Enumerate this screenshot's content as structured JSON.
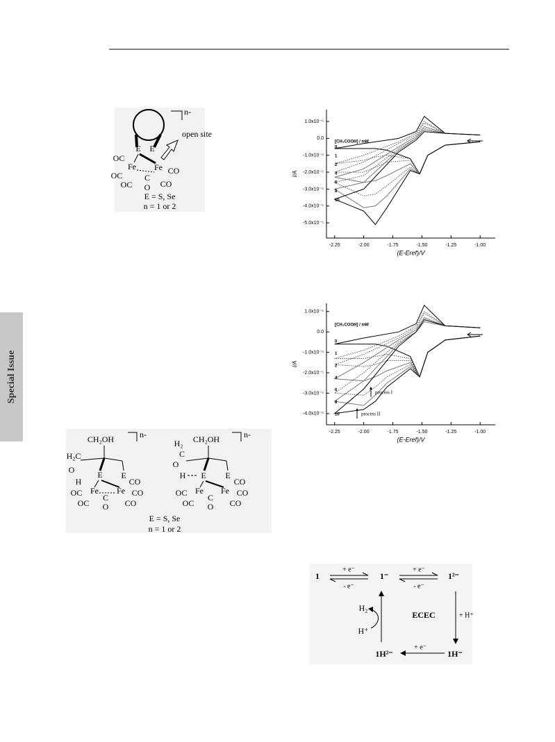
{
  "side_tab": "Special Issue",
  "figure1": {
    "charge": "n-",
    "open_site": "open site",
    "atoms": [
      "E",
      "E",
      "OC",
      "Fe",
      "Fe",
      "OC",
      "OC",
      "C",
      "O",
      "CO",
      "CO"
    ],
    "caption": [
      "E = S, Se",
      "n = 1 or 2"
    ]
  },
  "chart_data": [
    {
      "type": "line",
      "y_label": "I/A",
      "x_label": "(E-Eref)/V",
      "legend_title": "[CH₃COOH] / mM",
      "x": [
        -1.0,
        -1.3,
        -1.45,
        -1.52,
        -1.6,
        -1.8,
        -1.9,
        -2.0,
        -2.25,
        -2.0,
        -1.7,
        -1.55,
        -1.48,
        -1.3,
        -1.0
      ],
      "xlim": [
        -2.32,
        -0.87
      ],
      "ylim": [
        -5.9e-05,
        1.7e-05
      ],
      "xticks": [
        -2.25,
        {
          "value": -2,
          "label": "-2.00"
        },
        -1.75,
        {
          "value": -1.5,
          "label": "-1.50"
        },
        -1.25,
        {
          "value": -1,
          "label": "-1.00"
        }
      ],
      "yticks": [
        {
          "value": 1e-05,
          "label": "1.0x10⁻⁵"
        },
        {
          "value": 0,
          "label": "0.0"
        },
        {
          "value": -1e-05,
          "label": "-1.0x10⁻⁵"
        },
        {
          "value": -2e-05,
          "label": "-2.0x10⁻⁵"
        },
        {
          "value": -3e-05,
          "label": "-3.0x10⁻⁵"
        },
        {
          "value": -4e-05,
          "label": "-4.0x10⁻⁵"
        },
        {
          "value": -5e-05,
          "label": "-5.0x10⁻⁵"
        }
      ],
      "series": [
        {
          "name": "0",
          "color": "#000000",
          "style": "solid",
          "values": [
            -2e-06,
            -4e-06,
            -1e-05,
            -2.1e-05,
            -1.2e-05,
            -7e-06,
            -6e-06,
            -6e-06,
            -6e-06,
            -3e-06,
            0,
            4e-06,
            1.3e-05,
            3e-06,
            2e-06
          ]
        },
        {
          "name": "1",
          "color": "#444444",
          "style": "dotted",
          "values": [
            -2e-06,
            -4e-06,
            -1e-05,
            -2.1e-05,
            -1.2e-05,
            -1e-05,
            -1.1e-05,
            -1.3e-05,
            -1.5e-05,
            -1e-05,
            -2e-06,
            3e-06,
            1e-05,
            3e-06,
            2e-06
          ]
        },
        {
          "name": "2",
          "color": "#444444",
          "style": "dotted",
          "values": [
            -2e-06,
            -4e-06,
            -1e-05,
            -2.1e-05,
            -1.3e-05,
            -1.4e-05,
            -1.7e-05,
            -2e-05,
            -2e-05,
            -1.4e-05,
            -3e-06,
            2e-06,
            9e-06,
            3e-06,
            2e-06
          ]
        },
        {
          "name": "4",
          "color": "#777777",
          "style": "solid",
          "values": [
            -2e-06,
            -4e-06,
            -1e-05,
            -2.1e-05,
            -1.5e-05,
            -2.2e-05,
            -2.5e-05,
            -2.6e-05,
            -2.3e-05,
            -1.8e-05,
            -5e-06,
            1e-06,
            7e-06,
            3e-06,
            2e-06
          ]
        },
        {
          "name": "6",
          "color": "#444444",
          "style": "dotted",
          "values": [
            -2e-06,
            -4e-06,
            -1e-05,
            -2.1e-05,
            -1.7e-05,
            -2.8e-05,
            -3.3e-05,
            -3.4e-05,
            -2.6e-05,
            -2.2e-05,
            -6e-06,
            0,
            6e-06,
            3e-06,
            2e-06
          ]
        },
        {
          "name": "8",
          "color": "#777777",
          "style": "solid",
          "values": [
            -2e-06,
            -4e-06,
            -1e-05,
            -2.1e-05,
            -1.8e-05,
            -3.4e-05,
            -4e-05,
            -4.1e-05,
            -3e-05,
            -2.6e-05,
            -7e-06,
            0,
            5e-06,
            3e-06,
            2e-06
          ]
        },
        {
          "name": "10",
          "color": "#000000",
          "style": "solid",
          "values": [
            -2e-06,
            -4e-06,
            -1e-05,
            -2.1e-05,
            -1.9e-05,
            -4.1e-05,
            -5.1e-05,
            -4.3e-05,
            -3.6e-05,
            -3e-05,
            -8e-06,
            -1e-06,
            4e-06,
            3e-06,
            2e-06
          ]
        }
      ]
    },
    {
      "type": "line",
      "y_label": "I/A",
      "x_label": "(E-Eref)/V",
      "legend_title": "[CH₃COOH] / mM",
      "annotations": [
        "process I",
        "process II"
      ],
      "x": [
        -1.0,
        -1.3,
        -1.45,
        -1.52,
        -1.6,
        -1.8,
        -1.9,
        -2.0,
        -2.25,
        -2.0,
        -1.7,
        -1.55,
        -1.48,
        -1.3,
        -1.0
      ],
      "xlim": [
        -2.32,
        -0.87
      ],
      "ylim": [
        -4.55e-05,
        1.4e-05
      ],
      "xticks": [
        -2.25,
        {
          "value": -2,
          "label": "-2.00"
        },
        -1.75,
        {
          "value": -1.5,
          "label": "-1.50"
        },
        -1.25,
        {
          "value": -1,
          "label": "-1.00"
        }
      ],
      "yticks": [
        {
          "value": 1e-05,
          "label": "1.0x10⁻⁵"
        },
        {
          "value": 0,
          "label": "0.0"
        },
        {
          "value": -1e-05,
          "label": "-1.0x10⁻⁵"
        },
        {
          "value": -2e-05,
          "label": "-2.0x10⁻⁵"
        },
        {
          "value": -3e-05,
          "label": "-3.0x10⁻⁵"
        },
        {
          "value": -4e-05,
          "label": "-4.0x10⁻⁵"
        }
      ],
      "series": [
        {
          "name": "0",
          "color": "#000000",
          "style": "solid",
          "values": [
            -2e-06,
            -4e-06,
            -1e-05,
            -2.2e-05,
            -1.2e-05,
            -7e-06,
            -6e-06,
            -6e-06,
            -6e-06,
            -3e-06,
            0,
            4e-06,
            1.3e-05,
            3e-06,
            2e-06
          ]
        },
        {
          "name": "1",
          "color": "#444444",
          "style": "dotted",
          "values": [
            -2e-06,
            -4e-06,
            -1e-05,
            -2.2e-05,
            -1.3e-05,
            -1.1e-05,
            -1.2e-05,
            -1.3e-05,
            -1.3e-05,
            -9e-06,
            -2e-06,
            3e-06,
            1e-05,
            3e-06,
            2e-06
          ]
        },
        {
          "name": "2",
          "color": "#444444",
          "style": "dotted",
          "values": [
            -2e-06,
            -4e-06,
            -1e-05,
            -2.2e-05,
            -1.4e-05,
            -1.4e-05,
            -1.6e-05,
            -1.7e-05,
            -1.6e-05,
            -1.1e-05,
            -3e-06,
            2e-06,
            9e-06,
            3e-06,
            2e-06
          ]
        },
        {
          "name": "4",
          "color": "#777777",
          "style": "solid",
          "values": [
            -2e-06,
            -4e-06,
            -1e-05,
            -2.2e-05,
            -1.5e-05,
            -1.9e-05,
            -2.2e-05,
            -2.4e-05,
            -2.3e-05,
            -1.5e-05,
            -4e-06,
            1e-06,
            7e-06,
            3e-06,
            2e-06
          ]
        },
        {
          "name": "6",
          "color": "#444444",
          "style": "dotted",
          "values": [
            -2e-06,
            -4e-06,
            -1e-05,
            -2.2e-05,
            -1.6e-05,
            -2.2e-05,
            -2.7e-05,
            -3.1e-05,
            -3e-05,
            -2e-05,
            -5e-06,
            0,
            6e-06,
            3e-06,
            2e-06
          ]
        },
        {
          "name": "8",
          "color": "#777777",
          "style": "solid",
          "values": [
            -2e-06,
            -4e-06,
            -1e-05,
            -2.2e-05,
            -1.7e-05,
            -2.5e-05,
            -3.1e-05,
            -3.6e-05,
            -3.4e-05,
            -2.4e-05,
            -6e-06,
            0,
            5e-06,
            3e-06,
            2e-06
          ]
        },
        {
          "name": "10",
          "color": "#000000",
          "style": "solid",
          "values": [
            -2e-06,
            -4e-06,
            -1e-05,
            -2.2e-05,
            -1.8e-05,
            -2.7e-05,
            -3.4e-05,
            -3.8e-05,
            -4e-05,
            -2.8e-05,
            -7e-06,
            0,
            6e-06,
            3e-06,
            2e-06
          ]
        }
      ]
    }
  ],
  "figure2": {
    "left": [
      "CH₂OH",
      "n-",
      "H₂C",
      "O",
      "H",
      "E",
      "E",
      "Fe",
      "Fe",
      "OC",
      "OC",
      "C",
      "O",
      "CO",
      "CO",
      "CO"
    ],
    "right": [
      "H₂",
      "C",
      "CH₂OH",
      "n-",
      "O",
      "H",
      "E",
      "E",
      "Fe",
      "Fe",
      "OC",
      "OC",
      "C",
      "O",
      "CO",
      "CO",
      "CO"
    ],
    "caption": [
      "E = S, Se",
      "n = 1 or 2"
    ]
  },
  "scheme": {
    "species": [
      "1",
      "1⁻",
      "1²⁻",
      "1H⁻",
      "1H²⁻"
    ],
    "steps": [
      "+ e⁻",
      "- e⁻",
      "+ e⁻",
      "- e⁻",
      "+ H⁺",
      "+ e⁻"
    ],
    "center": "ECEC",
    "h2": "H₂",
    "hplus": "H⁺"
  }
}
